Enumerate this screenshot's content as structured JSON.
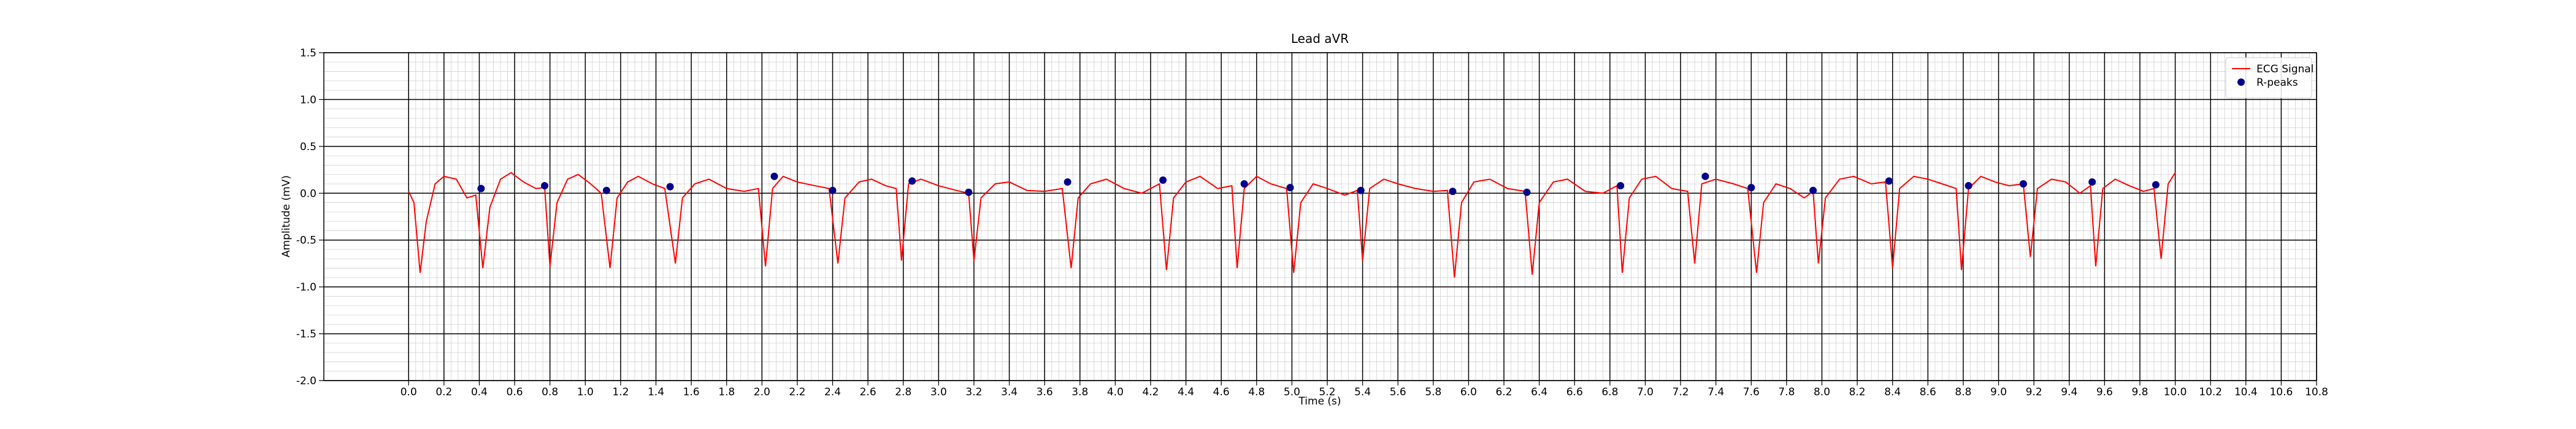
{
  "chart_data": {
    "type": "line",
    "title": "Lead aVR",
    "xlabel": "Time (s)",
    "ylabel": "Amplitude (mV)",
    "xlim": [
      -0.48,
      10.8
    ],
    "ylim": [
      -2.0,
      1.5
    ],
    "xticks": [
      {
        "value": 0,
        "label": "0.0"
      },
      0.2,
      0.4,
      0.6,
      0.8,
      {
        "value": 1,
        "label": "1.0"
      },
      1.2,
      1.4,
      1.6,
      1.8,
      {
        "value": 2,
        "label": "2.0"
      },
      2.2,
      2.4,
      2.6,
      2.8,
      {
        "value": 3,
        "label": "3.0"
      },
      3.2,
      3.4,
      3.6,
      3.8,
      {
        "value": 4,
        "label": "4.0"
      },
      4.2,
      4.4,
      4.6,
      4.8,
      {
        "value": 5,
        "label": "5.0"
      },
      5.2,
      5.4,
      5.6,
      5.8,
      {
        "value": 6,
        "label": "6.0"
      },
      6.2,
      6.4,
      6.6,
      6.8,
      {
        "value": 7,
        "label": "7.0"
      },
      7.2,
      7.4,
      7.6,
      7.8,
      {
        "value": 8,
        "label": "8.0"
      },
      8.2,
      8.4,
      8.6,
      8.8,
      {
        "value": 9,
        "label": "9.0"
      },
      9.2,
      9.4,
      9.6,
      9.8,
      {
        "value": 10,
        "label": "10.0"
      },
      10.2,
      10.4,
      10.6,
      10.8
    ],
    "yticks": [
      {
        "value": -2,
        "label": "-2.0"
      },
      -1.5,
      {
        "value": -1,
        "label": "-1.0"
      },
      -0.5,
      {
        "value": 0,
        "label": "0.0"
      },
      0.5,
      {
        "value": 1,
        "label": "1.0"
      },
      1.5
    ],
    "grid": true,
    "minor_grid": true,
    "legend": "upper right",
    "series": [
      {
        "name": "ECG Signal",
        "type": "line",
        "color": "#ff0000",
        "x": [
          0.0,
          0.03,
          0.065,
          0.1,
          0.15,
          0.2,
          0.27,
          0.33,
          0.38,
          0.42,
          0.46,
          0.52,
          0.58,
          0.65,
          0.72,
          0.77,
          0.8,
          0.84,
          0.9,
          0.96,
          1.03,
          1.09,
          1.14,
          1.18,
          1.24,
          1.3,
          1.38,
          1.45,
          1.51,
          1.55,
          1.62,
          1.7,
          1.8,
          1.9,
          1.98,
          2.02,
          2.06,
          2.12,
          2.2,
          2.3,
          2.38,
          2.43,
          2.47,
          2.55,
          2.62,
          2.7,
          2.76,
          2.79,
          2.83,
          2.9,
          3.0,
          3.1,
          3.17,
          3.2,
          3.24,
          3.32,
          3.4,
          3.5,
          3.6,
          3.7,
          3.75,
          3.79,
          3.86,
          3.95,
          4.05,
          4.15,
          4.25,
          4.29,
          4.33,
          4.4,
          4.48,
          4.58,
          4.66,
          4.69,
          4.73,
          4.8,
          4.88,
          4.97,
          5.01,
          5.05,
          5.12,
          5.2,
          5.3,
          5.37,
          5.4,
          5.44,
          5.52,
          5.6,
          5.7,
          5.8,
          5.88,
          5.92,
          5.96,
          6.03,
          6.12,
          6.22,
          6.32,
          6.36,
          6.4,
          6.48,
          6.56,
          6.66,
          6.76,
          6.84,
          6.87,
          6.91,
          6.98,
          7.06,
          7.15,
          7.24,
          7.28,
          7.32,
          7.4,
          7.5,
          7.58,
          7.63,
          7.67,
          7.74,
          7.82,
          7.9,
          7.95,
          7.98,
          8.02,
          8.1,
          8.18,
          8.28,
          8.36,
          8.4,
          8.44,
          8.52,
          8.6,
          8.68,
          8.76,
          8.79,
          8.83,
          8.9,
          8.98,
          9.06,
          9.14,
          9.18,
          9.22,
          9.3,
          9.38,
          9.46,
          9.52,
          9.55,
          9.59,
          9.66,
          9.74,
          9.82,
          9.88,
          9.92,
          9.96,
          10.0
        ],
        "values": [
          0.02,
          -0.1,
          -0.85,
          -0.3,
          0.1,
          0.18,
          0.15,
          -0.05,
          -0.02,
          -0.8,
          -0.15,
          0.15,
          0.22,
          0.12,
          0.05,
          0.06,
          -0.78,
          -0.1,
          0.15,
          0.2,
          0.1,
          0.0,
          -0.8,
          -0.05,
          0.12,
          0.18,
          0.1,
          0.05,
          -0.75,
          -0.05,
          0.1,
          0.15,
          0.05,
          0.02,
          0.05,
          -0.78,
          0.05,
          0.18,
          0.12,
          0.08,
          0.05,
          -0.75,
          -0.05,
          0.12,
          0.15,
          0.08,
          0.05,
          -0.72,
          0.1,
          0.15,
          0.08,
          0.03,
          0.0,
          -0.72,
          -0.05,
          0.1,
          0.12,
          0.03,
          0.02,
          0.05,
          -0.8,
          -0.05,
          0.1,
          0.15,
          0.05,
          0.0,
          0.1,
          -0.82,
          -0.05,
          0.12,
          0.18,
          0.05,
          0.08,
          -0.8,
          0.05,
          0.18,
          0.1,
          0.05,
          -0.85,
          -0.1,
          0.1,
          0.05,
          -0.02,
          0.03,
          -0.72,
          0.05,
          0.15,
          0.1,
          0.05,
          0.02,
          0.03,
          -0.9,
          -0.1,
          0.12,
          0.15,
          0.05,
          0.02,
          -0.87,
          -0.1,
          0.12,
          0.15,
          0.02,
          0.0,
          0.08,
          -0.85,
          -0.05,
          0.15,
          0.18,
          0.05,
          0.02,
          -0.75,
          0.1,
          0.15,
          0.1,
          0.05,
          -0.85,
          -0.1,
          0.1,
          0.05,
          -0.05,
          0.02,
          -0.75,
          -0.05,
          0.15,
          0.18,
          0.1,
          0.12,
          -0.8,
          0.05,
          0.18,
          0.15,
          0.1,
          0.05,
          -0.82,
          0.05,
          0.18,
          0.12,
          0.08,
          0.1,
          -0.68,
          0.05,
          0.15,
          0.12,
          0.0,
          0.08,
          -0.78,
          0.05,
          0.15,
          0.08,
          0.02,
          0.05,
          -0.7,
          0.1,
          0.22
        ]
      },
      {
        "name": "R-peaks",
        "type": "scatter",
        "color": "#00008b",
        "x": [
          0.41,
          0.77,
          1.12,
          1.48,
          2.07,
          2.4,
          2.85,
          3.17,
          3.73,
          4.27,
          4.73,
          4.99,
          5.39,
          5.91,
          6.33,
          6.86,
          7.34,
          7.6,
          7.95,
          8.38,
          8.83,
          9.14,
          9.53,
          9.89
        ],
        "values": [
          0.05,
          0.08,
          0.03,
          0.07,
          0.18,
          0.03,
          0.13,
          0.01,
          0.12,
          0.14,
          0.1,
          0.06,
          0.03,
          0.02,
          0.01,
          0.08,
          0.18,
          0.06,
          0.03,
          0.13,
          0.08,
          0.1,
          0.12,
          0.09
        ]
      }
    ]
  }
}
